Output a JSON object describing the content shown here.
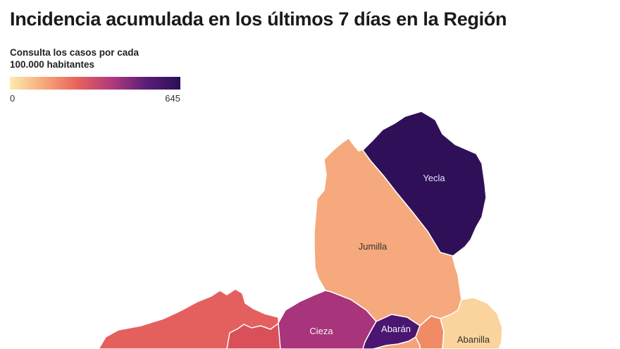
{
  "title": "Incidencia acumulada en los últimos 7 días en la Región",
  "subtitle_line1": "Consulta los casos por cada",
  "subtitle_line2": "100.000 habitantes",
  "legend": {
    "min_label": "0",
    "max_label": "645",
    "colors": [
      "#fcebb0",
      "#f6a878",
      "#e8605c",
      "#b03a7c",
      "#5b1d78",
      "#2b0f57"
    ]
  },
  "regions": [
    {
      "name": "Yecla",
      "fill": "#2f1058",
      "label_color": "#e6e6ff"
    },
    {
      "name": "Jumilla",
      "fill": "#f6a97c",
      "label_color": "#333333"
    },
    {
      "name": "Cieza",
      "fill": "#a8347b",
      "label_color": "#f2f2f2"
    },
    {
      "name": "Abarán",
      "fill": "#4a1672",
      "label_color": "#f2f2f2"
    },
    {
      "name": "Abanilla",
      "fill": "#fbd39c",
      "label_color": "#333333"
    },
    {
      "name": "",
      "fill": "#e4605f",
      "label_color": "#333333"
    },
    {
      "name": "",
      "fill": "#d9505a",
      "label_color": "#333333"
    },
    {
      "name": "",
      "fill": "#f08b66",
      "label_color": "#333333"
    },
    {
      "name": "",
      "fill": "#f5a27a",
      "label_color": "#333333"
    }
  ]
}
